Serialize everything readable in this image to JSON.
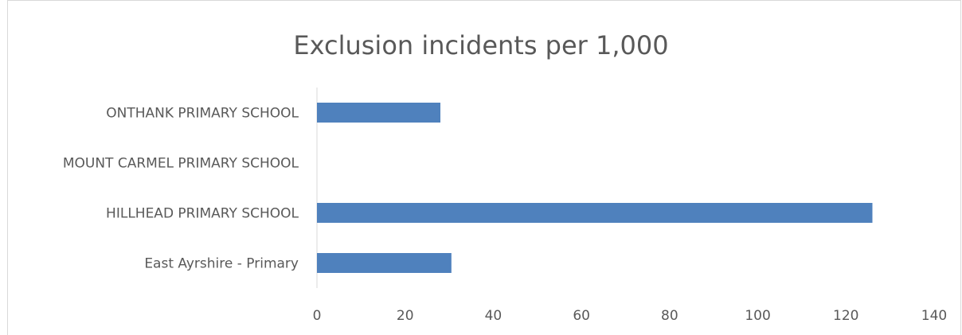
{
  "chart_data": {
    "type": "bar",
    "orientation": "horizontal",
    "title": "Exclusion incidents per 1,000",
    "xlabel": "",
    "ylabel": "",
    "categories": [
      "ONTHANK PRIMARY SCHOOL",
      "MOUNT CARMEL PRIMARY SCHOOL",
      "HILLHEAD PRIMARY SCHOOL",
      "East Ayrshire - Primary"
    ],
    "values": [
      28,
      0,
      126,
      30.5
    ],
    "xlim": [
      0,
      140
    ],
    "xticks": [
      "0",
      "20",
      "40",
      "60",
      "80",
      "100",
      "120",
      "140"
    ],
    "bar_color": "#4f81bd",
    "grid": false,
    "legend": "none"
  }
}
